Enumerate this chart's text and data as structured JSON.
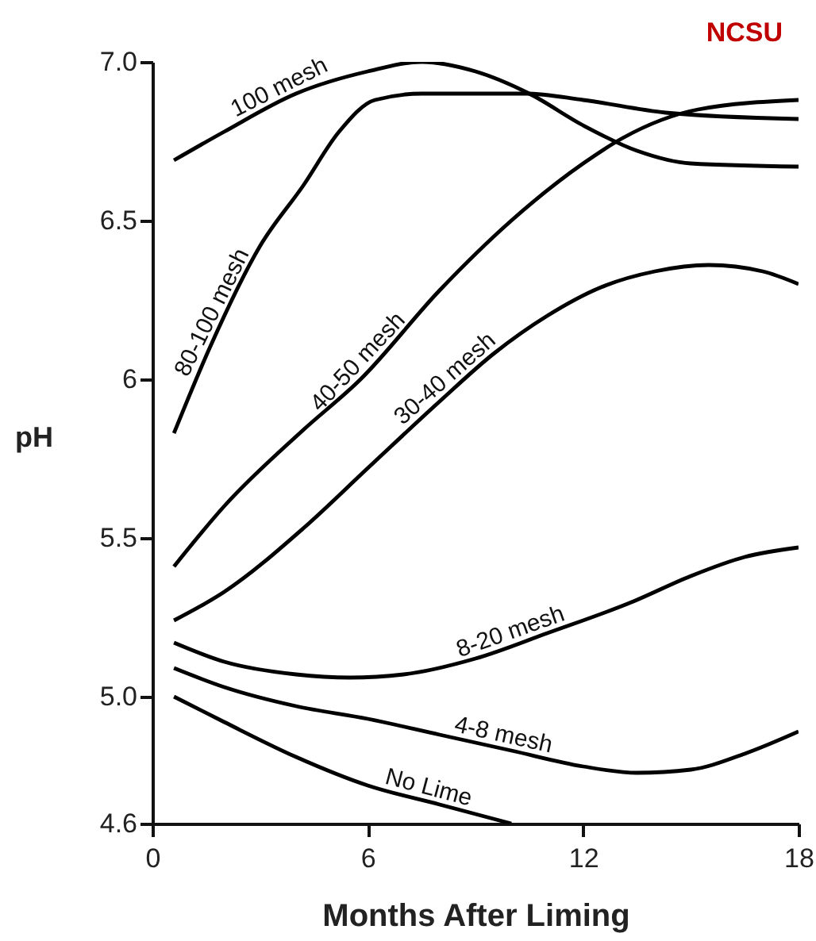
{
  "chart_data": {
    "type": "line",
    "xlabel": "Months After Liming",
    "ylabel": "pH",
    "annotations": [
      "NCSU"
    ],
    "xlim": [
      0,
      18
    ],
    "xticks": [
      0,
      6,
      12,
      18
    ],
    "ylim": [
      4.6,
      7.0
    ],
    "yticks": [
      4.6,
      {
        "value": 5,
        "label": "5.0"
      },
      5.5,
      6,
      {
        "value": 6.5,
        "label": "6.5"
      },
      {
        "value": 7,
        "label": "7.0"
      }
    ],
    "grid": false,
    "legend": false,
    "marker": "none",
    "line_style": "solid",
    "series": [
      {
        "name": "100 mesh",
        "color": "#000000",
        "x": [
          0.6,
          2,
          4,
          6,
          7.5,
          9,
          10.5,
          12,
          13.5,
          15,
          18
        ],
        "values": [
          6.69,
          6.78,
          6.9,
          6.97,
          7.0,
          6.97,
          6.9,
          6.8,
          6.72,
          6.68,
          6.67
        ]
      },
      {
        "name": "80-100 mesh",
        "color": "#000000",
        "x": [
          0.6,
          1.6,
          3,
          4.2,
          5.2,
          6.2,
          7.5,
          10.4,
          12,
          14.3,
          18
        ],
        "values": [
          5.83,
          6.1,
          6.42,
          6.61,
          6.78,
          6.88,
          6.9,
          6.9,
          6.88,
          6.84,
          6.82
        ]
      },
      {
        "name": "40-50 mesh",
        "color": "#000000",
        "x": [
          0.6,
          2,
          4.2,
          5.8,
          8,
          10,
          12,
          13.1,
          15.2,
          18
        ],
        "values": [
          5.41,
          5.6,
          5.84,
          6.0,
          6.28,
          6.5,
          6.68,
          6.76,
          6.85,
          6.88
        ]
      },
      {
        "name": "30-40 mesh",
        "color": "#000000",
        "x": [
          0.6,
          2,
          4.2,
          6,
          8,
          9.5,
          11,
          12.5,
          14,
          15.5,
          17,
          18
        ],
        "values": [
          5.24,
          5.33,
          5.53,
          5.72,
          5.93,
          6.08,
          6.2,
          6.29,
          6.34,
          6.36,
          6.34,
          6.3
        ]
      },
      {
        "name": "8-20 mesh",
        "color": "#000000",
        "x": [
          0.6,
          2,
          4,
          5.5,
          7,
          9,
          11,
          13.4,
          15,
          16.5,
          18
        ],
        "values": [
          5.17,
          5.11,
          5.07,
          5.06,
          5.07,
          5.12,
          5.2,
          5.3,
          5.38,
          5.44,
          5.47
        ]
      },
      {
        "name": "4-8 mesh",
        "color": "#000000",
        "x": [
          0.6,
          2,
          4,
          6,
          8,
          10,
          12,
          13.5,
          15,
          16.5,
          18
        ],
        "values": [
          5.09,
          5.03,
          4.97,
          4.93,
          4.88,
          4.83,
          4.78,
          4.76,
          4.77,
          4.82,
          4.89
        ]
      },
      {
        "name": "No Lime",
        "color": "#000000",
        "x": [
          0.6,
          2,
          4,
          6,
          8,
          10
        ],
        "values": [
          5.0,
          4.92,
          4.81,
          4.72,
          4.66,
          4.6
        ]
      }
    ]
  }
}
